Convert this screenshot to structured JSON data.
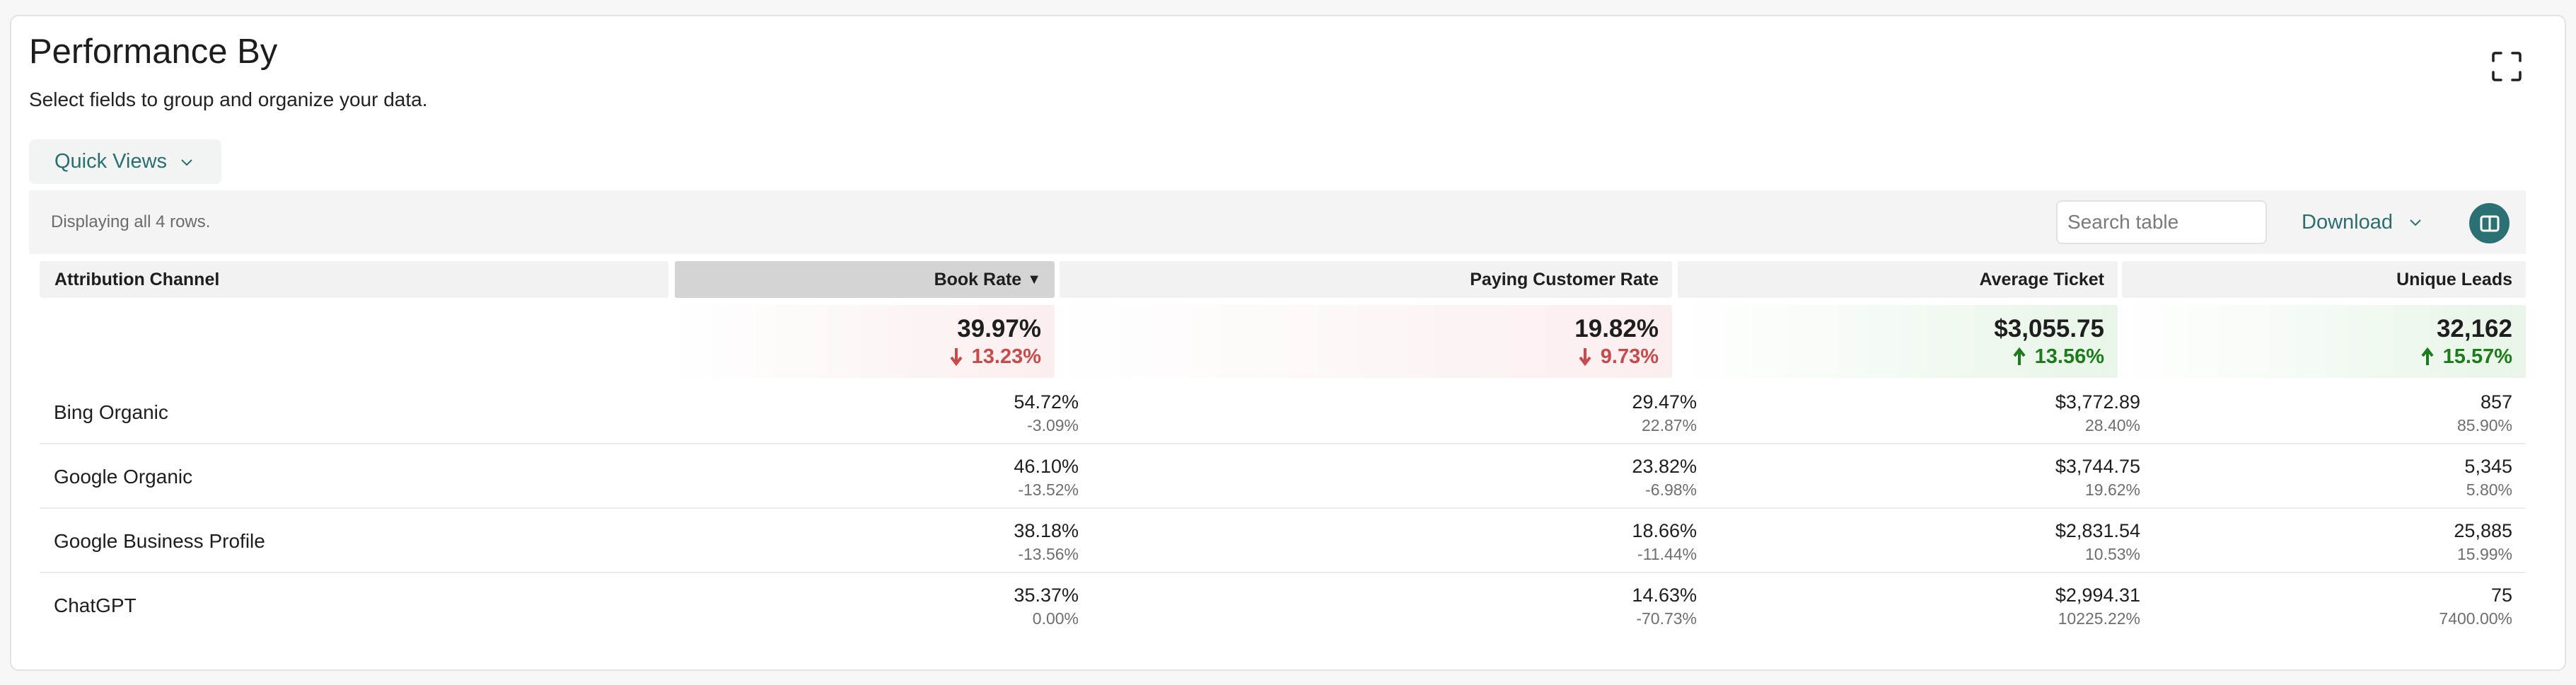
{
  "header": {
    "title": "Performance By",
    "subtitle": "Select fields to group and organize your data."
  },
  "quick_views": {
    "label": "Quick Views"
  },
  "toolbar": {
    "row_count": "Displaying all 4 rows.",
    "search_placeholder": "Search table",
    "download_label": "Download"
  },
  "columns": {
    "channel": "Attribution Channel",
    "book_rate": "Book Rate",
    "sort_indicator": "▼",
    "paying_customer_rate": "Paying Customer Rate",
    "average_ticket": "Average Ticket",
    "unique_leads": "Unique Leads"
  },
  "summary": {
    "book_rate": {
      "value": "39.97%",
      "change": "13.23%",
      "direction": "down"
    },
    "paying_customer_rate": {
      "value": "19.82%",
      "change": "9.73%",
      "direction": "down"
    },
    "average_ticket": {
      "value": "$3,055.75",
      "change": "13.56%",
      "direction": "up"
    },
    "unique_leads": {
      "value": "32,162",
      "change": "15.57%",
      "direction": "up"
    }
  },
  "rows": [
    {
      "channel": "Bing Organic",
      "book_rate": "54.72%",
      "book_rate_pct": "-3.09%",
      "paying_customer_rate": "29.47%",
      "paying_customer_rate_pct": "22.87%",
      "average_ticket": "$3,772.89",
      "average_ticket_pct": "28.40%",
      "unique_leads": "857",
      "unique_leads_pct": "85.90%"
    },
    {
      "channel": "Google Organic",
      "book_rate": "46.10%",
      "book_rate_pct": "-13.52%",
      "paying_customer_rate": "23.82%",
      "paying_customer_rate_pct": "-6.98%",
      "average_ticket": "$3,744.75",
      "average_ticket_pct": "19.62%",
      "unique_leads": "5,345",
      "unique_leads_pct": "5.80%"
    },
    {
      "channel": "Google Business Profile",
      "book_rate": "38.18%",
      "book_rate_pct": "-13.56%",
      "paying_customer_rate": "18.66%",
      "paying_customer_rate_pct": "-11.44%",
      "average_ticket": "$2,831.54",
      "average_ticket_pct": "10.53%",
      "unique_leads": "25,885",
      "unique_leads_pct": "15.99%"
    },
    {
      "channel": "ChatGPT",
      "book_rate": "35.37%",
      "book_rate_pct": "0.00%",
      "paying_customer_rate": "14.63%",
      "paying_customer_rate_pct": "-70.73%",
      "average_ticket": "$2,994.31",
      "average_ticket_pct": "10225.22%",
      "unique_leads": "75",
      "unique_leads_pct": "7400.00%"
    }
  ],
  "icons": {
    "fullscreen": "fullscreen-icon",
    "quick_views_chevron": "chevron-down-icon",
    "download_chevron": "chevron-down-icon",
    "columns": "columns-icon",
    "down_arrow": "arrow-down-icon",
    "up_arrow": "arrow-up-icon"
  },
  "colors": {
    "accent": "#2a6e70",
    "negative": "#c94a4a",
    "positive": "#1c7c1c"
  }
}
